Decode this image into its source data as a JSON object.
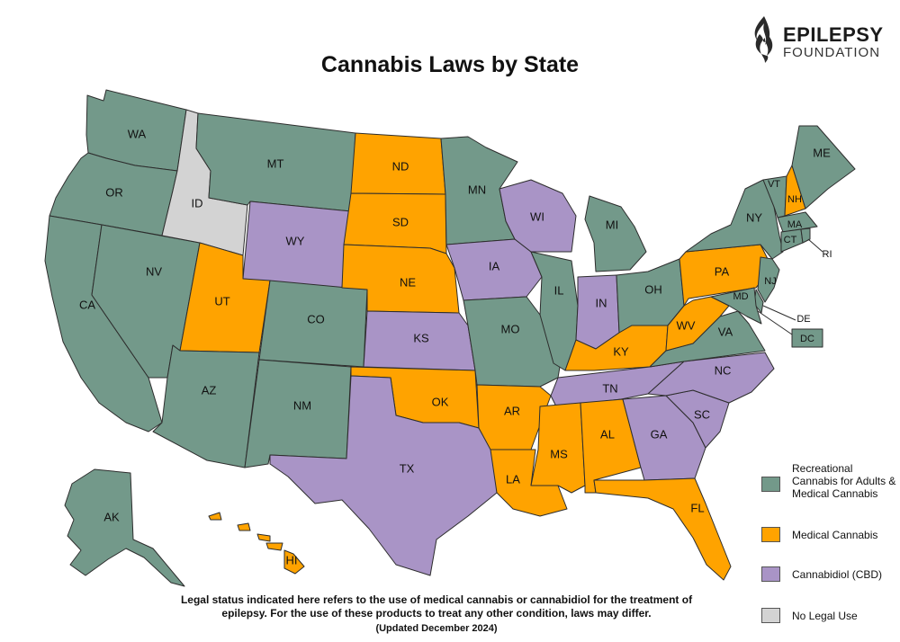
{
  "title": "Cannabis Laws by State",
  "logo": {
    "line1": "EPILEPSY",
    "line2": "FOUNDATION",
    "icon": "flame-icon"
  },
  "colors": {
    "recreational": "#73998a",
    "medical": "#ffa300",
    "cbd": "#a994c6",
    "none": "#d3d3d3"
  },
  "legend": [
    {
      "key": "recreational",
      "label": "Recreational Cannabis for Adults & Medical Cannabis"
    },
    {
      "key": "medical",
      "label": "Medical Cannabis"
    },
    {
      "key": "cbd",
      "label": "Cannabidiol (CBD)"
    },
    {
      "key": "none",
      "label": "No Legal Use"
    }
  ],
  "states": {
    "WA": {
      "label": "WA",
      "status": "recreational"
    },
    "OR": {
      "label": "OR",
      "status": "recreational"
    },
    "CA": {
      "label": "CA",
      "status": "recreational"
    },
    "NV": {
      "label": "NV",
      "status": "recreational"
    },
    "ID": {
      "label": "ID",
      "status": "none"
    },
    "MT": {
      "label": "MT",
      "status": "recreational"
    },
    "WY": {
      "label": "WY",
      "status": "cbd"
    },
    "UT": {
      "label": "UT",
      "status": "medical"
    },
    "AZ": {
      "label": "AZ",
      "status": "recreational"
    },
    "CO": {
      "label": "CO",
      "status": "recreational"
    },
    "NM": {
      "label": "NM",
      "status": "recreational"
    },
    "ND": {
      "label": "ND",
      "status": "medical"
    },
    "SD": {
      "label": "SD",
      "status": "medical"
    },
    "NE": {
      "label": "NE",
      "status": "medical"
    },
    "KS": {
      "label": "KS",
      "status": "cbd"
    },
    "OK": {
      "label": "OK",
      "status": "medical"
    },
    "TX": {
      "label": "TX",
      "status": "cbd"
    },
    "MN": {
      "label": "MN",
      "status": "recreational"
    },
    "IA": {
      "label": "IA",
      "status": "cbd"
    },
    "MO": {
      "label": "MO",
      "status": "recreational"
    },
    "AR": {
      "label": "AR",
      "status": "medical"
    },
    "LA": {
      "label": "LA",
      "status": "medical"
    },
    "WI": {
      "label": "WI",
      "status": "cbd"
    },
    "IL": {
      "label": "IL",
      "status": "recreational"
    },
    "MI": {
      "label": "MI",
      "status": "recreational"
    },
    "IN": {
      "label": "IN",
      "status": "cbd"
    },
    "OH": {
      "label": "OH",
      "status": "recreational"
    },
    "KY": {
      "label": "KY",
      "status": "medical"
    },
    "TN": {
      "label": "TN",
      "status": "cbd"
    },
    "MS": {
      "label": "MS",
      "status": "medical"
    },
    "AL": {
      "label": "AL",
      "status": "medical"
    },
    "GA": {
      "label": "GA",
      "status": "cbd"
    },
    "FL": {
      "label": "FL",
      "status": "medical"
    },
    "SC": {
      "label": "SC",
      "status": "cbd"
    },
    "NC": {
      "label": "NC",
      "status": "cbd"
    },
    "VA": {
      "label": "VA",
      "status": "recreational"
    },
    "WV": {
      "label": "WV",
      "status": "medical"
    },
    "PA": {
      "label": "PA",
      "status": "medical"
    },
    "NY": {
      "label": "NY",
      "status": "recreational"
    },
    "VT": {
      "label": "VT",
      "status": "recreational"
    },
    "NH": {
      "label": "NH",
      "status": "medical"
    },
    "ME": {
      "label": "ME",
      "status": "recreational"
    },
    "MA": {
      "label": "MA",
      "status": "recreational"
    },
    "RI": {
      "label": "RI",
      "status": "recreational"
    },
    "CT": {
      "label": "CT",
      "status": "recreational"
    },
    "NJ": {
      "label": "NJ",
      "status": "recreational"
    },
    "DE": {
      "label": "DE",
      "status": "recreational"
    },
    "MD": {
      "label": "MD",
      "status": "recreational"
    },
    "DC": {
      "label": "DC",
      "status": "recreational"
    },
    "AK": {
      "label": "AK",
      "status": "recreational"
    },
    "HI": {
      "label": "HI",
      "status": "medical"
    }
  },
  "disclaimer": {
    "line1": "Legal status indicated here refers to the use of medical cannabis or cannabidiol for the treatment of",
    "line2": "epilepsy. For the use of these products to treat any other condition, laws may differ.",
    "updated": "(Updated December 2024)"
  }
}
